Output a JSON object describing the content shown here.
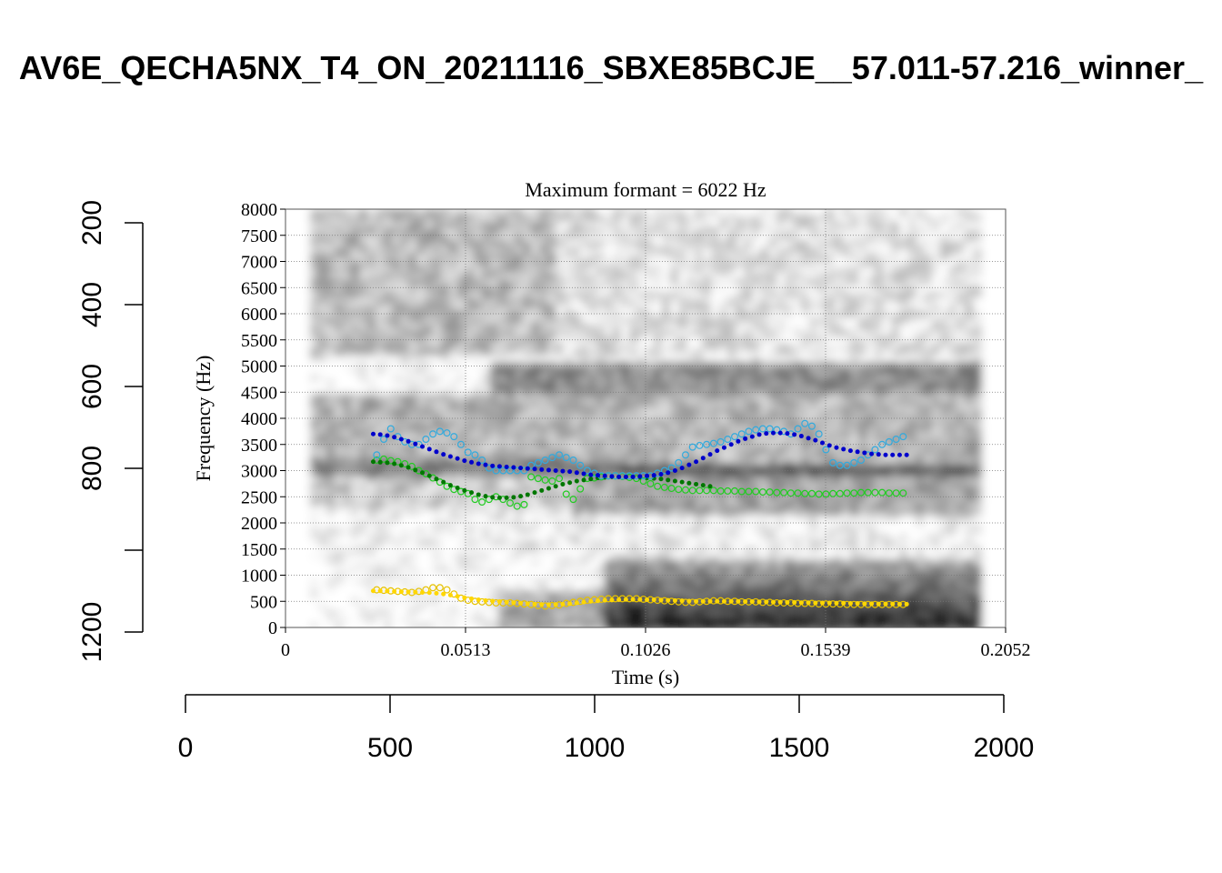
{
  "title": "AV6E_QECHA5NX_T4_ON_20211116_SBXE85BCJE__57.011-57.216_winner_",
  "chart_data": {
    "type": "scatter",
    "title": "Maximum formant  =  6022 Hz",
    "xlabel": "Time (s)",
    "ylabel": "Frequency (Hz)",
    "xlim": [
      0,
      0.2052
    ],
    "ylim": [
      0,
      8000
    ],
    "x_ticks": [
      "0",
      "0.0513",
      "0.1026",
      "0.1539",
      "0.2052"
    ],
    "y_ticks": [
      "0",
      "500",
      "1000",
      "1500",
      "2000",
      "2500",
      "3000",
      "3500",
      "4000",
      "4500",
      "5000",
      "5500",
      "6000",
      "6500",
      "7000",
      "7500",
      "8000"
    ],
    "grid": true,
    "outer_bottom_axis": {
      "range": [
        0,
        2000
      ],
      "ticks": [
        "0",
        "500",
        "1000",
        "1500",
        "2000"
      ]
    },
    "outer_left_axis": {
      "range": [
        200,
        1200
      ],
      "reversed": true,
      "ticks": [
        "200",
        "400",
        "600",
        "800",
        "1200"
      ]
    },
    "spectrogram_time_range": [
      0.007,
      0.1975
    ],
    "series": [
      {
        "name": "F1 raw",
        "marker": "open-circle",
        "color": "#e6c200",
        "x": [
          0.026,
          0.028,
          0.03,
          0.032,
          0.034,
          0.036,
          0.038,
          0.04,
          0.042,
          0.044,
          0.046,
          0.048,
          0.05,
          0.052,
          0.054,
          0.056,
          0.058,
          0.06,
          0.062,
          0.064,
          0.066,
          0.068,
          0.07,
          0.072,
          0.074,
          0.076,
          0.078,
          0.08,
          0.082,
          0.084,
          0.086,
          0.088,
          0.09,
          0.092,
          0.094,
          0.096,
          0.098,
          0.1,
          0.102,
          0.104,
          0.106,
          0.108,
          0.11,
          0.112,
          0.114,
          0.116,
          0.118,
          0.12,
          0.122,
          0.124,
          0.126,
          0.128,
          0.13,
          0.132,
          0.134,
          0.136,
          0.138,
          0.14,
          0.142,
          0.144,
          0.146,
          0.148,
          0.15,
          0.152,
          0.154,
          0.156,
          0.158,
          0.16,
          0.162,
          0.164,
          0.166,
          0.168,
          0.17,
          0.172,
          0.174,
          0.176
        ],
        "y": [
          720,
          710,
          700,
          690,
          680,
          670,
          690,
          720,
          760,
          760,
          720,
          640,
          560,
          520,
          500,
          490,
          480,
          470,
          470,
          470,
          460,
          450,
          440,
          420,
          410,
          420,
          430,
          460,
          480,
          500,
          520,
          530,
          540,
          550,
          550,
          550,
          550,
          550,
          540,
          530,
          520,
          510,
          500,
          490,
          480,
          480,
          490,
          500,
          510,
          510,
          500,
          500,
          490,
          490,
          490,
          480,
          480,
          470,
          470,
          470,
          460,
          460,
          460,
          450,
          450,
          450,
          450,
          440,
          440,
          440,
          440,
          440,
          440,
          440,
          440,
          440
        ]
      },
      {
        "name": "F1 smooth",
        "marker": "dot",
        "color": "#ffd700",
        "x": [
          0.025,
          0.027,
          0.029,
          0.031,
          0.033,
          0.035,
          0.037,
          0.039,
          0.041,
          0.043,
          0.045,
          0.047,
          0.049,
          0.051,
          0.053,
          0.055,
          0.057,
          0.059,
          0.061,
          0.063,
          0.065,
          0.067,
          0.069,
          0.071,
          0.073,
          0.075,
          0.077,
          0.079,
          0.081,
          0.083,
          0.085,
          0.087,
          0.089,
          0.091,
          0.093,
          0.095,
          0.097,
          0.099,
          0.101,
          0.103,
          0.105,
          0.107,
          0.109,
          0.111,
          0.113,
          0.115,
          0.117,
          0.119,
          0.121,
          0.123,
          0.125,
          0.127,
          0.129,
          0.131,
          0.133,
          0.135,
          0.137,
          0.139,
          0.141,
          0.143,
          0.145,
          0.147,
          0.149,
          0.151,
          0.153,
          0.155,
          0.157,
          0.159,
          0.161,
          0.163,
          0.165,
          0.167,
          0.169,
          0.171,
          0.173,
          0.175,
          0.177
        ],
        "y": [
          700,
          700,
          695,
          690,
          685,
          680,
          675,
          670,
          665,
          655,
          640,
          620,
          595,
          570,
          550,
          530,
          515,
          505,
          495,
          485,
          475,
          465,
          455,
          445,
          440,
          435,
          440,
          445,
          455,
          470,
          485,
          500,
          510,
          520,
          525,
          530,
          535,
          535,
          535,
          530,
          530,
          525,
          520,
          515,
          510,
          505,
          500,
          500,
          500,
          500,
          500,
          500,
          500,
          495,
          495,
          490,
          490,
          485,
          485,
          480,
          480,
          475,
          475,
          470,
          470,
          470,
          465,
          465,
          460,
          460,
          455,
          455,
          450,
          450,
          450,
          445,
          445
        ]
      },
      {
        "name": "F2 raw",
        "marker": "open-circle",
        "color": "#22cc22",
        "x": [
          0.026,
          0.028,
          0.03,
          0.032,
          0.034,
          0.036,
          0.038,
          0.04,
          0.042,
          0.044,
          0.046,
          0.048,
          0.05,
          0.052,
          0.054,
          0.056,
          0.058,
          0.06,
          0.062,
          0.064,
          0.066,
          0.068,
          0.07,
          0.072,
          0.074,
          0.076,
          0.078,
          0.08,
          0.082,
          0.084,
          0.086,
          0.088,
          0.09,
          0.092,
          0.094,
          0.096,
          0.098,
          0.1,
          0.102,
          0.104,
          0.106,
          0.108,
          0.11,
          0.112,
          0.114,
          0.116,
          0.118,
          0.12,
          0.122,
          0.124,
          0.126,
          0.128,
          0.13,
          0.132,
          0.134,
          0.136,
          0.138,
          0.14,
          0.142,
          0.144,
          0.146,
          0.148,
          0.15,
          0.152,
          0.154,
          0.156,
          0.158,
          0.16,
          0.162,
          0.164,
          0.166,
          0.168,
          0.17,
          0.172,
          0.174,
          0.176
        ],
        "y": [
          3200,
          3220,
          3190,
          3170,
          3130,
          3080,
          3000,
          2940,
          2860,
          2780,
          2700,
          2640,
          2600,
          2560,
          2450,
          2400,
          2450,
          2500,
          2450,
          2380,
          2320,
          2350,
          2880,
          2850,
          2820,
          2800,
          2850,
          2550,
          2450,
          2650,
          2850,
          2860,
          2880,
          2900,
          2900,
          2890,
          2870,
          2850,
          2800,
          2750,
          2700,
          2680,
          2660,
          2640,
          2630,
          2620,
          2620,
          2620,
          2620,
          2610,
          2610,
          2610,
          2600,
          2600,
          2600,
          2590,
          2590,
          2580,
          2580,
          2570,
          2570,
          2560,
          2560,
          2550,
          2550,
          2560,
          2560,
          2570,
          2570,
          2580,
          2580,
          2580,
          2580,
          2570,
          2570,
          2570
        ]
      },
      {
        "name": "F2 smooth",
        "marker": "dot",
        "color": "#007700",
        "x": [
          0.025,
          0.027,
          0.029,
          0.031,
          0.033,
          0.035,
          0.037,
          0.039,
          0.041,
          0.043,
          0.045,
          0.047,
          0.049,
          0.051,
          0.053,
          0.055,
          0.057,
          0.059,
          0.061,
          0.063,
          0.065,
          0.067,
          0.069,
          0.071,
          0.073,
          0.075,
          0.077,
          0.079,
          0.081,
          0.083,
          0.085,
          0.087,
          0.089,
          0.091,
          0.093,
          0.095,
          0.097,
          0.099,
          0.101,
          0.103,
          0.105,
          0.107,
          0.109,
          0.111,
          0.113,
          0.115,
          0.117,
          0.119,
          0.121
        ],
        "y": [
          3170,
          3160,
          3150,
          3130,
          3100,
          3060,
          3010,
          2960,
          2900,
          2840,
          2780,
          2720,
          2670,
          2620,
          2580,
          2540,
          2510,
          2490,
          2480,
          2480,
          2490,
          2510,
          2540,
          2580,
          2620,
          2660,
          2700,
          2740,
          2770,
          2800,
          2820,
          2840,
          2860,
          2870,
          2880,
          2880,
          2880,
          2880,
          2870,
          2860,
          2850,
          2840,
          2820,
          2800,
          2780,
          2760,
          2740,
          2720,
          2700
        ]
      },
      {
        "name": "F3 raw",
        "marker": "open-circle",
        "color": "#33aadd",
        "x": [
          0.026,
          0.028,
          0.03,
          0.032,
          0.034,
          0.036,
          0.038,
          0.04,
          0.042,
          0.044,
          0.046,
          0.048,
          0.05,
          0.052,
          0.054,
          0.056,
          0.058,
          0.06,
          0.062,
          0.064,
          0.066,
          0.068,
          0.07,
          0.072,
          0.074,
          0.076,
          0.078,
          0.08,
          0.082,
          0.084,
          0.086,
          0.088,
          0.09,
          0.092,
          0.094,
          0.096,
          0.098,
          0.1,
          0.102,
          0.104,
          0.106,
          0.108,
          0.11,
          0.112,
          0.114,
          0.116,
          0.118,
          0.12,
          0.122,
          0.124,
          0.126,
          0.128,
          0.13,
          0.132,
          0.134,
          0.136,
          0.138,
          0.14,
          0.142,
          0.144,
          0.146,
          0.148,
          0.15,
          0.152,
          0.154,
          0.156,
          0.158,
          0.16,
          0.162,
          0.164,
          0.166,
          0.168,
          0.17,
          0.172,
          0.174,
          0.176
        ],
        "y": [
          3300,
          3600,
          3800,
          3650,
          3550,
          3500,
          3500,
          3600,
          3700,
          3750,
          3720,
          3650,
          3500,
          3350,
          3300,
          3200,
          3050,
          3000,
          3000,
          3000,
          3000,
          3000,
          3100,
          3150,
          3200,
          3250,
          3300,
          3250,
          3200,
          3100,
          3000,
          2950,
          2900,
          2900,
          2900,
          2900,
          2900,
          2900,
          2900,
          2900,
          2950,
          3000,
          3050,
          3150,
          3300,
          3450,
          3480,
          3500,
          3520,
          3550,
          3600,
          3650,
          3700,
          3750,
          3780,
          3800,
          3800,
          3780,
          3750,
          3700,
          3800,
          3900,
          3850,
          3700,
          3400,
          3150,
          3100,
          3100,
          3150,
          3200,
          3300,
          3400,
          3500,
          3550,
          3600,
          3650
        ]
      },
      {
        "name": "F3 smooth",
        "marker": "dot",
        "color": "#0000cc",
        "x": [
          0.025,
          0.027,
          0.029,
          0.031,
          0.033,
          0.035,
          0.037,
          0.039,
          0.041,
          0.043,
          0.045,
          0.047,
          0.049,
          0.051,
          0.053,
          0.055,
          0.057,
          0.059,
          0.061,
          0.063,
          0.065,
          0.067,
          0.069,
          0.071,
          0.073,
          0.075,
          0.077,
          0.079,
          0.081,
          0.083,
          0.085,
          0.087,
          0.089,
          0.091,
          0.093,
          0.095,
          0.097,
          0.099,
          0.101,
          0.103,
          0.105,
          0.107,
          0.109,
          0.111,
          0.113,
          0.115,
          0.117,
          0.119,
          0.121,
          0.123,
          0.125,
          0.127,
          0.129,
          0.131,
          0.133,
          0.135,
          0.137,
          0.139,
          0.141,
          0.143,
          0.145,
          0.147,
          0.149,
          0.151,
          0.153,
          0.155,
          0.157,
          0.159,
          0.161,
          0.163,
          0.165,
          0.167,
          0.169,
          0.171,
          0.173,
          0.175,
          0.177
        ],
        "y": [
          3700,
          3690,
          3670,
          3640,
          3600,
          3560,
          3510,
          3460,
          3410,
          3360,
          3310,
          3270,
          3230,
          3190,
          3160,
          3130,
          3110,
          3090,
          3080,
          3070,
          3060,
          3050,
          3040,
          3030,
          3020,
          3010,
          3000,
          2990,
          2980,
          2960,
          2940,
          2920,
          2910,
          2900,
          2890,
          2880,
          2880,
          2880,
          2890,
          2900,
          2910,
          2930,
          2960,
          3000,
          3050,
          3110,
          3170,
          3240,
          3310,
          3380,
          3440,
          3500,
          3560,
          3610,
          3650,
          3690,
          3710,
          3720,
          3720,
          3710,
          3690,
          3660,
          3620,
          3580,
          3530,
          3480,
          3440,
          3410,
          3380,
          3360,
          3340,
          3320,
          3310,
          3300,
          3300,
          3300,
          3300
        ]
      }
    ]
  }
}
